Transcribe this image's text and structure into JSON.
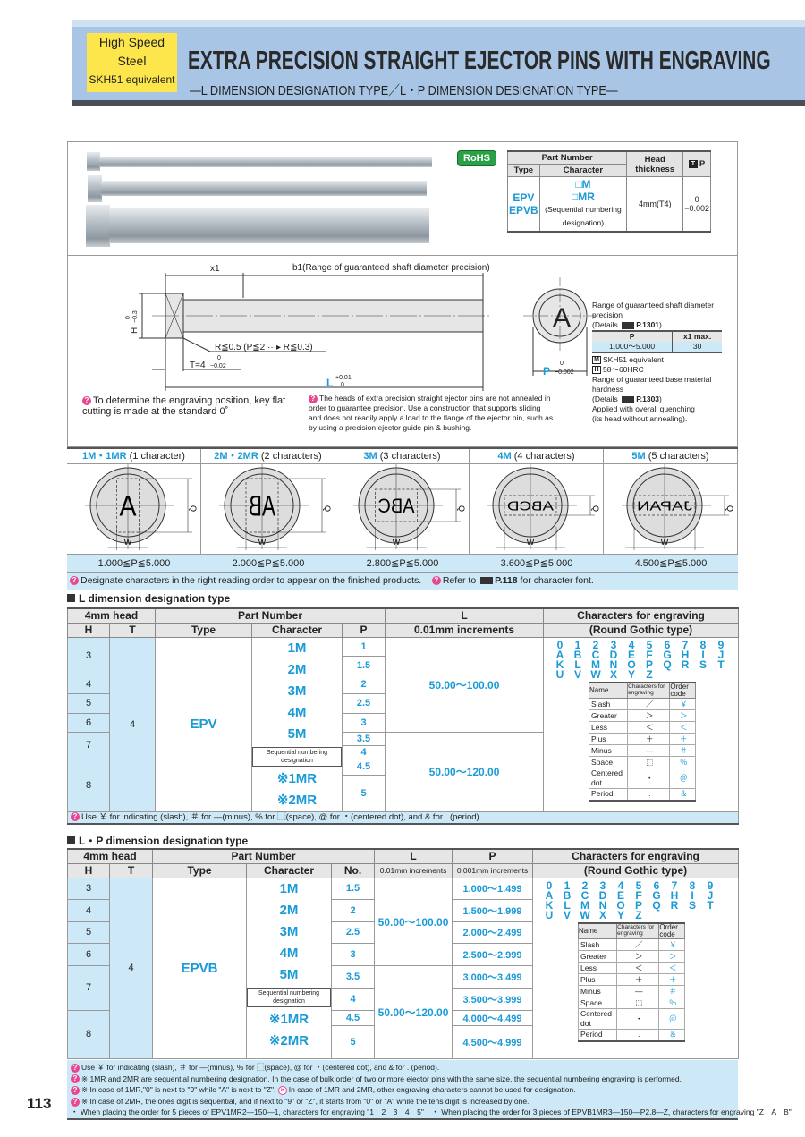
{
  "header": {
    "badge": [
      "High Speed",
      "Steel",
      "SKH51 equivalent"
    ],
    "title": "EXTRA PRECISION STRAIGHT EJECTOR PINS WITH ENGRAVING",
    "subtitle": "—L DIMENSION DESIGNATION TYPE／L・P DIMENSION DESIGNATION TYPE—"
  },
  "rohs": "RoHS",
  "spec_table": {
    "part_number": "Part Number",
    "type": "Type",
    "character": "Character",
    "head_thickness": "Head thickness",
    "t_icon": "T",
    "p": "P",
    "types": [
      "EPV",
      "EPVB"
    ],
    "characters": [
      "□M",
      "□MR"
    ],
    "char_note": "(Sequential numbering designation)",
    "head_value": "4mm(T4)",
    "p_tol_upper": "0",
    "p_tol_lower": "−0.002"
  },
  "diagram": {
    "x1": "x1",
    "b1": "b1(Range of guaranteed shaft diameter precision)",
    "h": "H",
    "h_tol_upper": "0",
    "h_tol_lower": "−0.3",
    "radius": "R≦0.5 (P≦2 ···▸ R≦0.3)",
    "t": "T=4",
    "t_tol_upper": "0",
    "t_tol_lower": "−0.02",
    "l": "L",
    "l_tol_upper": "+0.01",
    "l_tol_lower": "0",
    "p": "P",
    "p_tol_upper": "0",
    "p_tol_lower": "−0.002",
    "engraved_char": "A"
  },
  "notes": {
    "engraving_position": "To determine the engraving position, key flat cutting is made at the standard 0˚",
    "annealing": "The heads of extra precision straight ejector pins are not annealed in order to guarantee precision. Use a construction that supports sliding and does not readily apply a load to the flange of the ejector pin, such as by using a precision ejector guide pin & bushing."
  },
  "precision_info": {
    "range_text": "Range of guaranteed shaft diameter precision",
    "details_prefix": "(Details",
    "details_page": "P.1301",
    "details_suffix": ")",
    "table_headers": [
      "P",
      "x1 max."
    ],
    "table_row": [
      "1.000〜5.000",
      "30"
    ],
    "material_icon": "M",
    "material": "SKH51 equivalent",
    "hardness_icon": "H",
    "hardness": "58〜60HRC",
    "hardness_range_text": "Range of guaranteed base material hardness",
    "hardness_details_page": "P.1303",
    "quench_1": "Applied with overall quenching",
    "quench_2": "(its head without annealing)."
  },
  "engraving": {
    "columns": [
      {
        "code": "1M・1MR",
        "desc": "(1 character)",
        "sample": "A",
        "range": "1.000≦P≦5.000"
      },
      {
        "code": "2M・2MR",
        "desc": "(2 characters)",
        "sample": "AB",
        "range": "2.000≦P≦5.000"
      },
      {
        "code": "3M",
        "desc": "(3 characters)",
        "sample": "ABC",
        "range": "2.800≦P≦5.000"
      },
      {
        "code": "4M",
        "desc": "(4 characters)",
        "sample": "ABCD",
        "range": "3.600≦P≦5.000"
      },
      {
        "code": "5M",
        "desc": "(5 characters)",
        "sample": "JAPAN",
        "range": "4.500≦P≦5.000"
      }
    ],
    "w_label": "W",
    "q_label": "Q",
    "note_order": "Designate characters in the right reading order to appear on the finished products.",
    "note_font_prefix": "Refer to",
    "note_font_page": "P.118",
    "note_font_suffix": "for character font."
  },
  "l_table": {
    "section_title": "L dimension designation type",
    "headers": {
      "head": "4mm head",
      "h": "H",
      "t": "T",
      "part_number": "Part Number",
      "type": "Type",
      "character": "Character",
      "p": "P",
      "l": "L",
      "l_sub": "0.01mm increments",
      "chars": "Characters for engraving",
      "chars_sub": "(Round Gothic type)"
    },
    "h_values": [
      "3",
      "4",
      "5",
      "6",
      "7",
      "8"
    ],
    "t_value": "4",
    "type_value": "EPV",
    "characters": [
      "1M",
      "2M",
      "3M",
      "4M",
      "5M"
    ],
    "seq_label": "Sequential numbering designation",
    "seq_characters": [
      "※1MR",
      "※2MR"
    ],
    "p_values": [
      "1",
      "1.5",
      "2",
      "2.5",
      "3",
      "3.5",
      "4",
      "4.5",
      "5"
    ],
    "l_ranges": [
      "50.00〜100.00",
      "50.00〜120.00"
    ],
    "note": "Use ￥ for indicating (slash), ＃ for —(minus), % for ⬚(space), @ for ・(centered dot), and & for . (period)."
  },
  "char_set": {
    "alphanumerics": [
      "0",
      "1",
      "2",
      "3",
      "4",
      "5",
      "6",
      "7",
      "8",
      "9",
      "A",
      "B",
      "C",
      "D",
      "E",
      "F",
      "G",
      "H",
      "I",
      "J",
      "K",
      "L",
      "M",
      "N",
      "O",
      "P",
      "Q",
      "R",
      "S",
      "T",
      "U",
      "V",
      "W",
      "X",
      "Y",
      "Z"
    ],
    "headers": [
      "Name",
      "Characters for engraving",
      "Order code"
    ],
    "symbols": [
      {
        "name": "Slash",
        "char": "／",
        "code": "￥"
      },
      {
        "name": "Greater",
        "char": "＞",
        "code": "＞"
      },
      {
        "name": "Less",
        "char": "＜",
        "code": "＜"
      },
      {
        "name": "Plus",
        "char": "＋",
        "code": "＋"
      },
      {
        "name": "Minus",
        "char": "—",
        "code": "＃"
      },
      {
        "name": "Space",
        "char": "⬚",
        "code": "％"
      },
      {
        "name": "Centered dot",
        "char": "・",
        "code": "＠"
      },
      {
        "name": "Period",
        "char": ".",
        "code": "＆"
      }
    ]
  },
  "lp_table": {
    "section_title": "L・P dimension designation type",
    "headers": {
      "head": "4mm head",
      "h": "H",
      "t": "T",
      "part_number": "Part Number",
      "type": "Type",
      "character": "Character",
      "no": "No.",
      "l": "L",
      "l_sub": "0.01mm increments",
      "p": "P",
      "p_sub": "0.001mm increments",
      "chars": "Characters for engraving",
      "chars_sub": "(Round Gothic type)"
    },
    "h_values": [
      "3",
      "4",
      "5",
      "6",
      "7",
      "8"
    ],
    "t_value": "4",
    "type_value": "EPVB",
    "characters": [
      "1M",
      "2M",
      "3M",
      "4M",
      "5M"
    ],
    "seq_label": "Sequential numbering designation",
    "seq_characters": [
      "※1MR",
      "※2MR"
    ],
    "no_values": [
      "1.5",
      "2",
      "2.5",
      "3",
      "3.5",
      "4",
      "4.5",
      "5"
    ],
    "l_ranges": [
      "50.00〜100.00",
      "50.00〜120.00"
    ],
    "p_ranges": [
      "1.000〜1.499",
      "1.500〜1.999",
      "2.000〜2.499",
      "2.500〜2.999",
      "3.000〜3.499",
      "3.500〜3.999",
      "4.000〜4.499",
      "4.500〜4.999"
    ]
  },
  "footer_notes": [
    "Use ￥ for indicating (slash), ＃ for —(minus), % for ⬚(space), @ for ・(centered dot), and & for . (period).",
    "※ 1MR and 2MR are sequential numbering designation. In the case of bulk order of two or more ejector pins with the same size, the sequential numbering engraving is performed.",
    "※ In case of 1MR,\"0\" is next to \"9\" while \"A\" is next to \"Z\".",
    "In case of 1MR and 2MR, other engraving characters cannot be used for designation.",
    "※ In case of 2MR, the ones digit is sequential, and if next to \"9\" or \"Z\", it starts from \"0\" or \"A\" while the tens digit is increased by one.",
    "・ When placing the order for 5 pieces of EPV1MR2—150—1, characters for engraving \"1　2　3　4　5\"　・ When placing the order for 3 pieces of EPVB1MR3—150—P2.8—Z, characters for engraving \"Z　A　B\""
  ],
  "page_number": "113",
  "colors": {
    "accent": "#1a9ad6",
    "highlight": "#cde9f7",
    "header_band": "#a8c5e6",
    "badge": "#fde64b",
    "hint": "#e8468e"
  }
}
